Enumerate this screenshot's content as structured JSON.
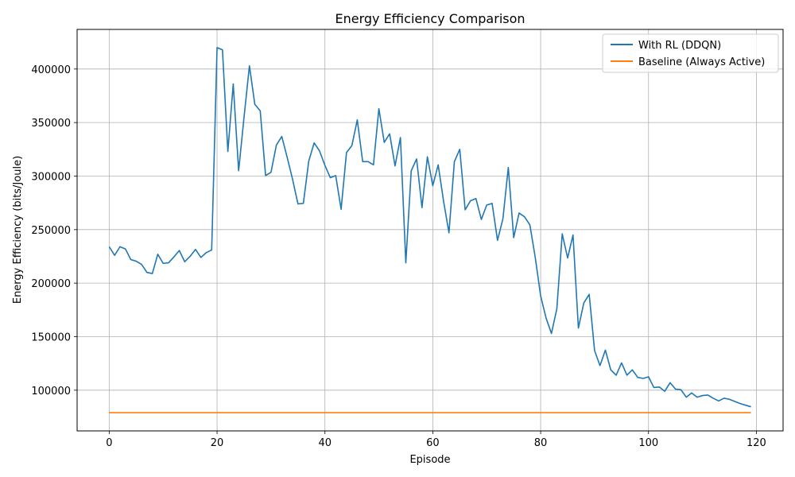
{
  "chart_data": {
    "type": "line",
    "title": "Energy Efficiency Comparison",
    "xlabel": "Episode",
    "ylabel": "Energy Efficiency (bits/Joule)",
    "xlim": [
      -5.95,
      124.95
    ],
    "ylim": [
      62000,
      437000
    ],
    "xticks": [
      0,
      20,
      40,
      60,
      80,
      100,
      120
    ],
    "yticks": [
      100000,
      150000,
      200000,
      250000,
      300000,
      350000,
      400000
    ],
    "grid": true,
    "legend_position": "upper right",
    "series": [
      {
        "name": "With RL (DDQN)",
        "color": "#1f77b4",
        "x_start": 0,
        "x_step": 1,
        "values": [
          234000,
          226000,
          234000,
          232000,
          222000,
          220500,
          217500,
          210000,
          209000,
          227000,
          218500,
          219000,
          224500,
          230500,
          220000,
          225000,
          231500,
          224000,
          228500,
          231000,
          420000,
          418000,
          323000,
          386000,
          305000,
          355000,
          403000,
          367000,
          361000,
          300500,
          303500,
          329000,
          337000,
          317500,
          297000,
          274000,
          274500,
          314000,
          331000,
          323500,
          310000,
          298500,
          300500,
          269000,
          322000,
          328500,
          352500,
          313500,
          313500,
          310500,
          363000,
          331500,
          339500,
          309500,
          336000,
          219000,
          305000,
          316000,
          270500,
          318000,
          291000,
          310500,
          276500,
          247000,
          313500,
          325000,
          268500,
          277000,
          279000,
          259500,
          273000,
          274500,
          240000,
          260000,
          308000,
          242500,
          265500,
          262000,
          254500,
          224000,
          188000,
          167500,
          153000,
          176000,
          246000,
          223500,
          245000,
          158000,
          181500,
          189500,
          137000,
          123000,
          137500,
          119000,
          114000,
          125500,
          114000,
          119000,
          112000,
          111000,
          112500,
          102500,
          103000,
          99000,
          107000,
          101000,
          100500,
          93500,
          97500,
          93500,
          95000,
          95500,
          92500,
          90000,
          92500,
          91500,
          89500,
          87500,
          86000,
          84500
        ]
      },
      {
        "name": "Baseline (Always Active)",
        "color": "#ff7f0e",
        "x_start": 0,
        "x_step": 1,
        "constant_value": 79000,
        "count": 120
      }
    ]
  }
}
